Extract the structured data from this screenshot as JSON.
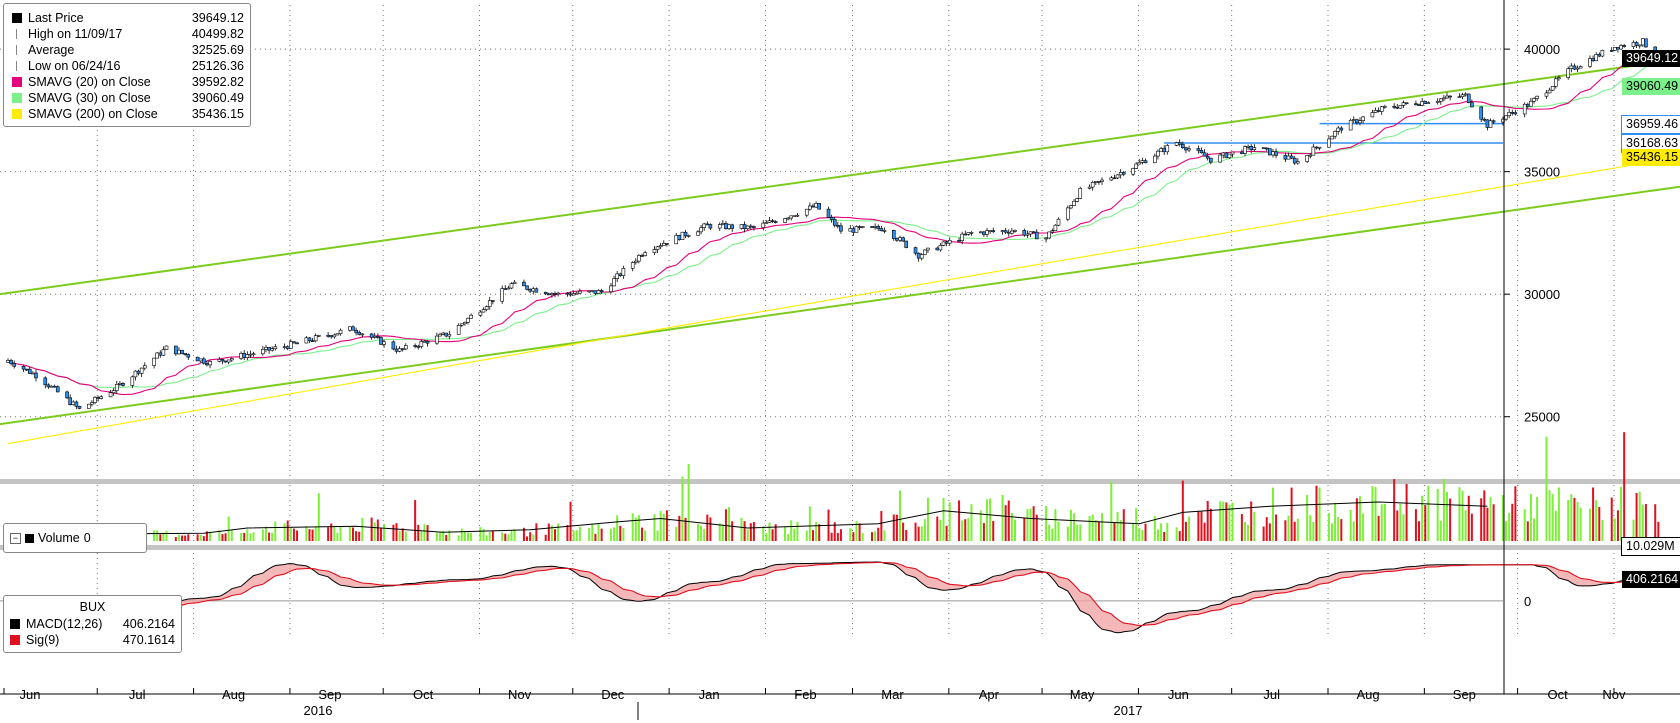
{
  "chart_data": [
    {
      "type": "line",
      "panel": "price",
      "series_type": "candlestick",
      "x_axis": {
        "months": [
          "Jun",
          "Jul",
          "Aug",
          "Sep",
          "Oct",
          "Nov",
          "Dec",
          "Jan",
          "Feb",
          "Mar",
          "Apr",
          "May",
          "Jun",
          "Jul",
          "Aug",
          "Sep",
          "Oct",
          "Nov"
        ],
        "years": [
          "2016",
          "2017"
        ]
      },
      "y_axis": {
        "ticks": [
          25000,
          30000,
          35000,
          40000
        ],
        "ylim": [
          22500,
          41800
        ]
      },
      "grid": true,
      "legend": {
        "placement": "top-left",
        "entries": [
          {
            "label": "Last Price",
            "value": "39649.12",
            "color": "#000000",
            "marker": "square"
          },
          {
            "label": "High on 11/09/17",
            "value": "40499.82",
            "color": "#888888",
            "marker": "high"
          },
          {
            "label": "Average",
            "value": "32525.69",
            "color": "#888888",
            "marker": "avg"
          },
          {
            "label": "Low on 06/24/16",
            "value": "25126.36",
            "color": "#888888",
            "marker": "low"
          },
          {
            "label": "SMAVG (20) on Close",
            "value": "39592.82",
            "color": "#e6007e",
            "marker": "square"
          },
          {
            "label": "SMAVG (30) on Close",
            "value": "39060.49",
            "color": "#7cf08a",
            "marker": "square"
          },
          {
            "label": "SMAVG (200) on Close",
            "value": "35436.15",
            "color": "#ffec00",
            "marker": "square"
          }
        ]
      },
      "close_series": {
        "start": "2016-06-01",
        "anchors": [
          [
            "2016-06-01",
            27300
          ],
          [
            "2016-06-10",
            26700
          ],
          [
            "2016-06-24",
            25300
          ],
          [
            "2016-07-06",
            26200
          ],
          [
            "2016-07-22",
            27800
          ],
          [
            "2016-08-05",
            27200
          ],
          [
            "2016-08-30",
            27900
          ],
          [
            "2016-09-20",
            28600
          ],
          [
            "2016-10-05",
            27700
          ],
          [
            "2016-10-21",
            28400
          ],
          [
            "2016-11-10",
            30400
          ],
          [
            "2016-11-25",
            30000
          ],
          [
            "2016-12-09",
            30100
          ],
          [
            "2016-12-23",
            31800
          ],
          [
            "2017-01-12",
            32800
          ],
          [
            "2017-01-27",
            32700
          ],
          [
            "2017-02-16",
            33600
          ],
          [
            "2017-02-24",
            32600
          ],
          [
            "2017-03-10",
            32700
          ],
          [
            "2017-03-21",
            31600
          ],
          [
            "2017-04-07",
            32500
          ],
          [
            "2017-04-20",
            32600
          ],
          [
            "2017-05-01",
            32300
          ],
          [
            "2017-05-12",
            34200
          ],
          [
            "2017-05-29",
            35200
          ],
          [
            "2017-06-12",
            36200
          ],
          [
            "2017-06-23",
            35500
          ],
          [
            "2017-07-07",
            36000
          ],
          [
            "2017-07-21",
            35400
          ],
          [
            "2017-08-04",
            36800
          ],
          [
            "2017-08-18",
            37600
          ],
          [
            "2017-09-01",
            37900
          ],
          [
            "2017-09-13",
            38100
          ],
          [
            "2017-09-20",
            36900
          ],
          [
            "2017-10-04",
            37800
          ],
          [
            "2017-10-17",
            39200
          ],
          [
            "2017-10-31",
            40100
          ],
          [
            "2017-11-09",
            40300
          ],
          [
            "2017-11-14",
            39649.12
          ]
        ],
        "last": 39649.12,
        "high": {
          "date": "2017-11-09",
          "value": 40499.82
        },
        "low": {
          "date": "2016-06-24",
          "value": 25126.36
        },
        "average": 32525.69
      },
      "moving_averages": [
        {
          "name": "SMAVG (20)",
          "period": 20,
          "color": "#e6007e",
          "last": 39592.82
        },
        {
          "name": "SMAVG (30)",
          "period": 30,
          "color": "#7cf08a",
          "last": 39060.49
        },
        {
          "name": "SMAVG (200)",
          "period": 200,
          "color": "#ffec00",
          "last": 35436.15
        }
      ],
      "trend_channel": {
        "color": "#7ccc1e",
        "upper": [
          [
            "2016-06-01",
            30000
          ],
          [
            "2017-11-16",
            39600
          ]
        ],
        "lower": [
          [
            "2016-06-01",
            24700
          ],
          [
            "2017-11-16",
            34400
          ]
        ]
      },
      "horizontal_levels": [
        {
          "value": 36959.46,
          "from": "2017-07-28",
          "color": "#2f8ff0"
        },
        {
          "value": 36168.63,
          "from": "2017-06-08",
          "color": "#2f8ff0"
        }
      ],
      "right_tags": [
        {
          "text": "39649.12",
          "value": 39649.12,
          "bg": "#000000",
          "fg": "#ffffff"
        },
        {
          "text": "39060.49",
          "value": 39060.49,
          "bg": "#7cf08a",
          "fg": "#000000",
          "offset": 14
        },
        {
          "text": "36959.46",
          "value": 36959.46,
          "bg": "#ffffff",
          "fg": "#000000",
          "border": "#2f8ff0"
        },
        {
          "text": "36168.63",
          "value": 36168.63,
          "bg": "#ffffff",
          "fg": "#000000",
          "border": "#2f8ff0"
        },
        {
          "text": "35436.15",
          "value": 35436.15,
          "bg": "#ffec00",
          "fg": "#000000",
          "offset": -4
        }
      ]
    },
    {
      "type": "bar",
      "panel": "volume",
      "legend": {
        "label": "Volume",
        "value": "0"
      },
      "last": "10.029M",
      "zero_label": "0",
      "colors": {
        "up": "#7cf037",
        "down": "#e0101e",
        "average": "#000000"
      },
      "baseline_series": [
        [
          0,
          6
        ],
        [
          15,
          8
        ],
        [
          45,
          9
        ],
        [
          55,
          15
        ],
        [
          80,
          17
        ],
        [
          100,
          10
        ],
        [
          120,
          13
        ],
        [
          140,
          22
        ],
        [
          150,
          26
        ],
        [
          170,
          15
        ],
        [
          200,
          20
        ],
        [
          215,
          35
        ],
        [
          235,
          26
        ],
        [
          260,
          20
        ],
        [
          270,
          33
        ],
        [
          290,
          40
        ],
        [
          315,
          45
        ],
        [
          340,
          40
        ]
      ],
      "ylim": [
        0,
        60
      ]
    },
    {
      "type": "area",
      "panel": "macd",
      "title": "BUX",
      "legend": [
        {
          "label": "MACD(12,26)",
          "value": "406.2164",
          "color": "#000000"
        },
        {
          "label": "Sig(9)",
          "value": "470.1614",
          "color": "#e0101e"
        }
      ],
      "y_ticks": [
        0
      ],
      "last_tag": "406.2164",
      "zero_tag": "0",
      "fill_color": "#f2a0a0",
      "macd_anchors": [
        [
          12,
          80
        ],
        [
          25,
          -250
        ],
        [
          45,
          50
        ],
        [
          65,
          700
        ],
        [
          80,
          250
        ],
        [
          105,
          400
        ],
        [
          125,
          650
        ],
        [
          145,
          -10
        ],
        [
          160,
          350
        ],
        [
          180,
          700
        ],
        [
          200,
          730
        ],
        [
          215,
          200
        ],
        [
          235,
          600
        ],
        [
          255,
          -600
        ],
        [
          270,
          -200
        ],
        [
          290,
          200
        ],
        [
          310,
          560
        ],
        [
          330,
          680
        ],
        [
          350,
          680
        ],
        [
          362,
          280
        ],
        [
          380,
          470
        ],
        [
          395,
          550
        ],
        [
          410,
          680
        ],
        [
          425,
          510
        ],
        [
          435,
          150
        ],
        [
          455,
          760
        ],
        [
          470,
          650
        ],
        [
          475,
          670
        ],
        [
          480,
          406.2164
        ]
      ],
      "signal_last": 470.1614,
      "ylim": [
        -700,
        900
      ]
    }
  ]
}
